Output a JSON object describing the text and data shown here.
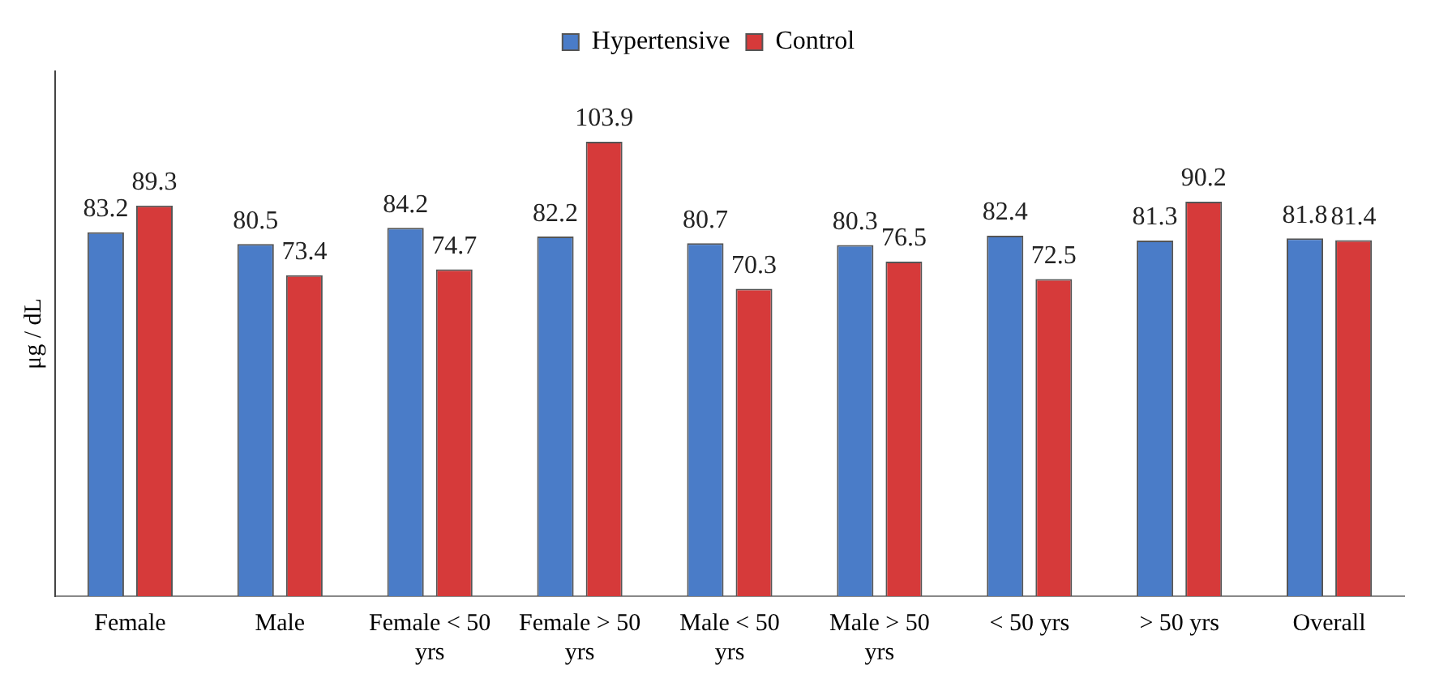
{
  "chart_data": {
    "type": "bar",
    "ylabel": "μg / dL",
    "categories": [
      "Female",
      "Male",
      "Female < 50 yrs",
      "Female > 50 yrs",
      "Male < 50 yrs",
      "Male > 50 yrs",
      "< 50 yrs",
      "> 50 yrs",
      "Overall"
    ],
    "series": [
      {
        "name": "Hypertensive",
        "color": "#4a7cc8",
        "values": [
          83.2,
          80.5,
          84.2,
          82.2,
          80.7,
          80.3,
          82.4,
          81.3,
          81.8
        ]
      },
      {
        "name": "Control",
        "color": "#d63a3a",
        "values": [
          89.3,
          73.4,
          74.7,
          103.9,
          70.3,
          76.5,
          72.5,
          90.2,
          81.4
        ]
      }
    ],
    "data_labels": true,
    "legend": "top",
    "grid": false,
    "tick_labels": "x"
  }
}
